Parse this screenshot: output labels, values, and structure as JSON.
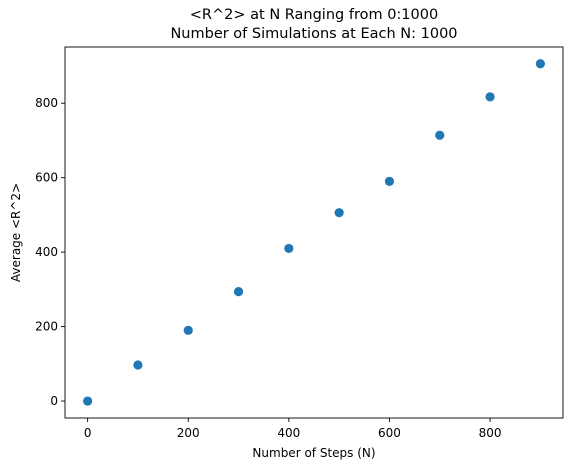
{
  "chart_data": {
    "type": "scatter",
    "title": "<R^2> at N Ranging from 0:1000",
    "subtitle": "Number of Simulations at Each N: 1000",
    "xlabel": "Number of Steps (N)",
    "ylabel": "Average <R^2>",
    "xlim": [
      -45,
      945
    ],
    "ylim": [
      -45.5,
      951
    ],
    "xticks": [
      0,
      200,
      400,
      600,
      800
    ],
    "yticks": [
      0,
      200,
      400,
      600,
      800
    ],
    "x": [
      0,
      100,
      200,
      300,
      400,
      500,
      600,
      700,
      800,
      900
    ],
    "y": [
      0,
      97,
      190,
      294,
      410,
      506,
      590,
      714,
      817,
      906
    ],
    "marker_color": "#1f77b4",
    "grid": false,
    "legend": "none"
  }
}
